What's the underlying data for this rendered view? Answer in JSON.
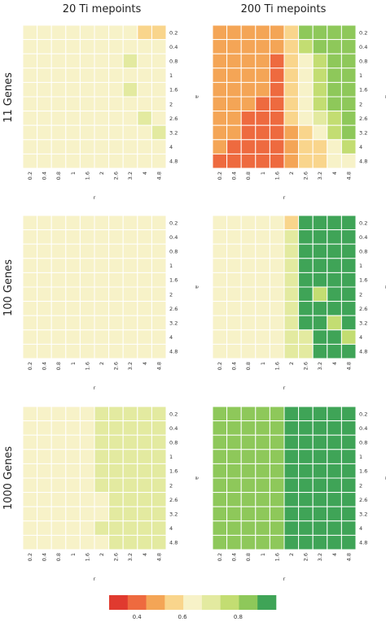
{
  "figure": {
    "col_titles": [
      "20 Ti mepoints",
      "200 Ti mepoints"
    ],
    "row_titles": [
      "11 Genes",
      "100 Genes",
      "1000 Genes"
    ]
  },
  "colors": {
    "scale": [
      "#e03a2f",
      "#ee6a3f",
      "#f4a556",
      "#f9d58c",
      "#f7f2c8",
      "#e3eaa0",
      "#c3dd72",
      "#8ec85a",
      "#3fa457"
    ]
  },
  "chart_data": [
    {
      "type": "heatmap",
      "name": "11 Genes / 20 Timepoints",
      "xlabel": "r",
      "ylabel": "a",
      "x_ticks": [
        "0.2",
        "0.4",
        "0.8",
        "1",
        "1.6",
        "2",
        "2.6",
        "3.2",
        "4",
        "4.8"
      ],
      "y_ticks": [
        "0.2",
        "0.4",
        "0.8",
        "1",
        "1.6",
        "2",
        "2.6",
        "3.2",
        "4",
        "4.8"
      ],
      "values": [
        [
          0.6,
          0.6,
          0.6,
          0.6,
          0.6,
          0.62,
          0.63,
          0.6,
          0.53,
          0.56
        ],
        [
          0.6,
          0.6,
          0.6,
          0.6,
          0.6,
          0.62,
          0.63,
          0.6,
          0.6,
          0.6
        ],
        [
          0.6,
          0.6,
          0.6,
          0.6,
          0.6,
          0.62,
          0.65,
          0.72,
          0.64,
          0.62
        ],
        [
          0.6,
          0.6,
          0.6,
          0.6,
          0.6,
          0.62,
          0.64,
          0.66,
          0.64,
          0.62
        ],
        [
          0.6,
          0.6,
          0.6,
          0.6,
          0.6,
          0.62,
          0.64,
          0.72,
          0.64,
          0.62
        ],
        [
          0.6,
          0.6,
          0.6,
          0.6,
          0.6,
          0.62,
          0.64,
          0.64,
          0.64,
          0.62
        ],
        [
          0.6,
          0.6,
          0.6,
          0.6,
          0.6,
          0.62,
          0.64,
          0.64,
          0.7,
          0.62
        ],
        [
          0.6,
          0.6,
          0.6,
          0.6,
          0.6,
          0.62,
          0.64,
          0.64,
          0.64,
          0.72
        ],
        [
          0.6,
          0.6,
          0.6,
          0.6,
          0.6,
          0.62,
          0.62,
          0.62,
          0.62,
          0.6
        ],
        [
          0.6,
          0.6,
          0.6,
          0.6,
          0.6,
          0.6,
          0.6,
          0.6,
          0.6,
          0.6
        ]
      ]
    },
    {
      "type": "heatmap",
      "name": "11 Genes / 200 Timepoints",
      "xlabel": "r",
      "ylabel": "a",
      "x_ticks": [
        "0.2",
        "0.4",
        "0.8",
        "1",
        "1.6",
        "2",
        "2.6",
        "3.2",
        "4",
        "4.8"
      ],
      "y_ticks": [
        "0.2",
        "0.4",
        "0.8",
        "1",
        "1.6",
        "2",
        "2.6",
        "3.2",
        "4",
        "4.8"
      ],
      "values": [
        [
          0.45,
          0.45,
          0.45,
          0.45,
          0.45,
          0.56,
          0.85,
          0.85,
          0.85,
          0.85
        ],
        [
          0.45,
          0.45,
          0.45,
          0.45,
          0.45,
          0.56,
          0.75,
          0.85,
          0.85,
          0.85
        ],
        [
          0.45,
          0.45,
          0.45,
          0.45,
          0.4,
          0.56,
          0.66,
          0.75,
          0.85,
          0.85
        ],
        [
          0.45,
          0.45,
          0.45,
          0.45,
          0.4,
          0.52,
          0.62,
          0.75,
          0.85,
          0.85
        ],
        [
          0.45,
          0.45,
          0.45,
          0.45,
          0.4,
          0.52,
          0.62,
          0.75,
          0.85,
          0.85
        ],
        [
          0.45,
          0.45,
          0.45,
          0.4,
          0.4,
          0.52,
          0.6,
          0.75,
          0.85,
          0.85
        ],
        [
          0.45,
          0.45,
          0.4,
          0.4,
          0.4,
          0.52,
          0.6,
          0.72,
          0.75,
          0.85
        ],
        [
          0.45,
          0.45,
          0.4,
          0.4,
          0.4,
          0.45,
          0.56,
          0.62,
          0.75,
          0.85
        ],
        [
          0.45,
          0.4,
          0.4,
          0.4,
          0.4,
          0.45,
          0.52,
          0.56,
          0.6,
          0.75
        ],
        [
          0.4,
          0.4,
          0.4,
          0.4,
          0.4,
          0.45,
          0.52,
          0.56,
          0.6,
          0.66
        ]
      ]
    },
    {
      "type": "heatmap",
      "name": "100 Genes / 20 Timepoints",
      "xlabel": "r",
      "ylabel": "a",
      "x_ticks": [
        "0.2",
        "0.4",
        "0.8",
        "1",
        "1.6",
        "2",
        "2.6",
        "3.2",
        "4",
        "4.8"
      ],
      "y_ticks": [
        "0.2",
        "0.4",
        "0.8",
        "1",
        "1.6",
        "2",
        "2.6",
        "3.2",
        "4",
        "4.8"
      ],
      "values": [
        [
          0.62,
          0.62,
          0.66,
          0.66,
          0.66,
          0.66,
          0.66,
          0.66,
          0.66,
          0.66
        ],
        [
          0.62,
          0.62,
          0.66,
          0.66,
          0.66,
          0.66,
          0.66,
          0.66,
          0.66,
          0.66
        ],
        [
          0.62,
          0.62,
          0.66,
          0.66,
          0.66,
          0.66,
          0.66,
          0.66,
          0.66,
          0.66
        ],
        [
          0.62,
          0.62,
          0.66,
          0.66,
          0.66,
          0.66,
          0.66,
          0.66,
          0.66,
          0.66
        ],
        [
          0.62,
          0.62,
          0.66,
          0.66,
          0.66,
          0.66,
          0.66,
          0.66,
          0.66,
          0.66
        ],
        [
          0.62,
          0.62,
          0.66,
          0.66,
          0.66,
          0.66,
          0.66,
          0.66,
          0.66,
          0.66
        ],
        [
          0.62,
          0.62,
          0.62,
          0.66,
          0.66,
          0.66,
          0.66,
          0.66,
          0.66,
          0.66
        ],
        [
          0.62,
          0.62,
          0.62,
          0.66,
          0.66,
          0.66,
          0.66,
          0.66,
          0.66,
          0.66
        ],
        [
          0.62,
          0.62,
          0.62,
          0.62,
          0.66,
          0.66,
          0.66,
          0.66,
          0.66,
          0.66
        ],
        [
          0.62,
          0.62,
          0.62,
          0.62,
          0.66,
          0.66,
          0.66,
          0.66,
          0.66,
          0.66
        ]
      ]
    },
    {
      "type": "heatmap",
      "name": "100 Genes / 200 Timepoints",
      "xlabel": "r",
      "ylabel": "a",
      "x_ticks": [
        "0.2",
        "0.4",
        "0.8",
        "1",
        "1.6",
        "2",
        "2.6",
        "3.2",
        "4",
        "4.8"
      ],
      "y_ticks": [
        "0.2",
        "0.4",
        "0.8",
        "1",
        "1.6",
        "2",
        "2.6",
        "3.2",
        "4",
        "4.8"
      ],
      "values": [
        [
          0.66,
          0.66,
          0.66,
          0.66,
          0.66,
          0.52,
          0.9,
          0.9,
          0.9,
          0.9
        ],
        [
          0.66,
          0.66,
          0.66,
          0.66,
          0.66,
          0.68,
          0.9,
          0.9,
          0.9,
          0.9
        ],
        [
          0.66,
          0.66,
          0.66,
          0.66,
          0.66,
          0.68,
          0.9,
          0.9,
          0.9,
          0.9
        ],
        [
          0.66,
          0.66,
          0.66,
          0.66,
          0.66,
          0.68,
          0.9,
          0.9,
          0.9,
          0.9
        ],
        [
          0.66,
          0.66,
          0.66,
          0.66,
          0.66,
          0.68,
          0.9,
          0.9,
          0.9,
          0.9
        ],
        [
          0.66,
          0.66,
          0.66,
          0.66,
          0.66,
          0.68,
          0.9,
          0.78,
          0.9,
          0.9
        ],
        [
          0.66,
          0.66,
          0.66,
          0.66,
          0.66,
          0.68,
          0.9,
          0.9,
          0.9,
          0.9
        ],
        [
          0.66,
          0.66,
          0.66,
          0.66,
          0.66,
          0.68,
          0.9,
          0.9,
          0.78,
          0.9
        ],
        [
          0.66,
          0.66,
          0.66,
          0.66,
          0.66,
          0.68,
          0.72,
          0.9,
          0.9,
          0.78
        ],
        [
          0.66,
          0.66,
          0.66,
          0.66,
          0.66,
          0.68,
          0.72,
          0.9,
          0.9,
          0.9
        ]
      ]
    },
    {
      "type": "heatmap",
      "name": "1000 Genes / 20 Timepoints",
      "xlabel": "r",
      "ylabel": "a",
      "x_ticks": [
        "0.2",
        "0.4",
        "0.8",
        "1",
        "1.6",
        "2",
        "2.6",
        "3.2",
        "4",
        "4.8"
      ],
      "y_ticks": [
        "0.2",
        "0.4",
        "0.8",
        "1",
        "1.6",
        "2",
        "2.6",
        "3.2",
        "4",
        "4.8"
      ],
      "values": [
        [
          0.66,
          0.66,
          0.66,
          0.66,
          0.66,
          0.7,
          0.7,
          0.7,
          0.7,
          0.7
        ],
        [
          0.66,
          0.66,
          0.66,
          0.66,
          0.66,
          0.7,
          0.7,
          0.7,
          0.7,
          0.7
        ],
        [
          0.66,
          0.66,
          0.66,
          0.66,
          0.66,
          0.7,
          0.7,
          0.7,
          0.7,
          0.7
        ],
        [
          0.66,
          0.66,
          0.66,
          0.66,
          0.66,
          0.7,
          0.7,
          0.7,
          0.7,
          0.7
        ],
        [
          0.66,
          0.66,
          0.66,
          0.66,
          0.66,
          0.7,
          0.7,
          0.7,
          0.7,
          0.7
        ],
        [
          0.66,
          0.66,
          0.66,
          0.66,
          0.66,
          0.7,
          0.7,
          0.7,
          0.7,
          0.7
        ],
        [
          0.66,
          0.66,
          0.66,
          0.66,
          0.66,
          0.66,
          0.7,
          0.7,
          0.7,
          0.7
        ],
        [
          0.66,
          0.66,
          0.66,
          0.66,
          0.66,
          0.66,
          0.7,
          0.7,
          0.7,
          0.7
        ],
        [
          0.66,
          0.66,
          0.66,
          0.66,
          0.66,
          0.7,
          0.7,
          0.7,
          0.7,
          0.7
        ],
        [
          0.66,
          0.66,
          0.66,
          0.66,
          0.66,
          0.66,
          0.7,
          0.7,
          0.7,
          0.7
        ]
      ]
    },
    {
      "type": "heatmap",
      "name": "1000 Genes / 200 Timepoints",
      "xlabel": "r",
      "ylabel": "a",
      "x_ticks": [
        "0.2",
        "0.4",
        "0.8",
        "1",
        "1.6",
        "2",
        "2.6",
        "3.2",
        "4",
        "4.8"
      ],
      "y_ticks": [
        "0.2",
        "0.4",
        "0.8",
        "1",
        "1.6",
        "2",
        "2.6",
        "3.2",
        "4",
        "4.8"
      ],
      "values": [
        [
          0.82,
          0.82,
          0.82,
          0.82,
          0.82,
          0.9,
          0.9,
          0.9,
          0.9,
          0.9
        ],
        [
          0.82,
          0.82,
          0.82,
          0.82,
          0.82,
          0.9,
          0.9,
          0.9,
          0.9,
          0.9
        ],
        [
          0.82,
          0.82,
          0.82,
          0.82,
          0.82,
          0.9,
          0.9,
          0.9,
          0.9,
          0.9
        ],
        [
          0.82,
          0.82,
          0.82,
          0.82,
          0.82,
          0.9,
          0.9,
          0.9,
          0.9,
          0.9
        ],
        [
          0.82,
          0.82,
          0.82,
          0.82,
          0.82,
          0.9,
          0.9,
          0.9,
          0.9,
          0.9
        ],
        [
          0.82,
          0.82,
          0.82,
          0.82,
          0.82,
          0.9,
          0.9,
          0.9,
          0.9,
          0.9
        ],
        [
          0.82,
          0.82,
          0.82,
          0.82,
          0.82,
          0.9,
          0.9,
          0.9,
          0.9,
          0.9
        ],
        [
          0.82,
          0.82,
          0.82,
          0.82,
          0.82,
          0.9,
          0.9,
          0.9,
          0.9,
          0.9
        ],
        [
          0.82,
          0.82,
          0.82,
          0.82,
          0.82,
          0.9,
          0.9,
          0.9,
          0.9,
          0.9
        ],
        [
          0.82,
          0.82,
          0.82,
          0.82,
          0.82,
          0.9,
          0.9,
          0.9,
          0.9,
          0.9
        ]
      ]
    },
    {
      "type": "colorbar",
      "bins": 9,
      "range": [
        0.3,
        0.96
      ],
      "ticks": [
        "0.4",
        "0.6",
        "0.8"
      ],
      "tick_values": [
        0.41,
        0.59,
        0.81
      ]
    }
  ]
}
